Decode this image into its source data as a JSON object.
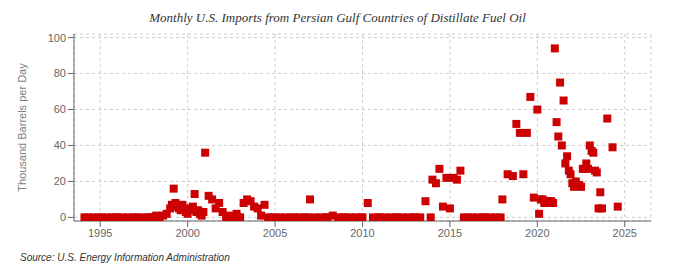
{
  "chart_data": {
    "type": "scatter",
    "title": "Monthly U.S. Imports from Persian Gulf Countries of Distillate Fuel Oil",
    "ylabel": "Thousand Barrels per Day",
    "annotation": "Source: U.S. Energy Information Administration",
    "color": "#cc0000",
    "marker": "square",
    "grid": true,
    "xlim": [
      1993.5,
      2026.5
    ],
    "ylim": [
      -2,
      102
    ],
    "xticks": [
      1995,
      2000,
      2005,
      2010,
      2015,
      2020,
      2025
    ],
    "yticks": [
      0,
      20,
      40,
      60,
      80,
      100
    ],
    "x": [
      1994.1,
      1994.3,
      1994.6,
      1994.9,
      1995.1,
      1995.4,
      1995.7,
      1995.9,
      1996.0,
      1996.3,
      1996.6,
      1996.9,
      1997.1,
      1997.4,
      1997.7,
      1997.9,
      1998.0,
      1998.2,
      1998.4,
      1998.6,
      1998.8,
      1999.0,
      1999.1,
      1999.2,
      1999.3,
      1999.4,
      1999.5,
      1999.6,
      1999.7,
      1999.8,
      1999.9,
      2000.0,
      2000.1,
      2000.2,
      2000.3,
      2000.4,
      2000.5,
      2000.6,
      2000.7,
      2000.8,
      2000.9,
      2001.0,
      2001.2,
      2001.4,
      2001.6,
      2001.8,
      2002.0,
      2002.2,
      2002.4,
      2002.6,
      2002.8,
      2002.9,
      2003.0,
      2003.2,
      2003.4,
      2003.6,
      2003.8,
      2004.0,
      2004.2,
      2004.4,
      2004.6,
      2004.8,
      2005.0,
      2005.3,
      2005.6,
      2005.9,
      2006.1,
      2006.4,
      2006.7,
      2006.9,
      2007.0,
      2007.3,
      2007.6,
      2007.9,
      2008.0,
      2008.3,
      2008.6,
      2008.9,
      2009.0,
      2009.3,
      2009.6,
      2009.9,
      2010.0,
      2010.3,
      2010.6,
      2010.9,
      2011.0,
      2011.3,
      2011.6,
      2011.9,
      2012.0,
      2012.3,
      2012.6,
      2012.9,
      2013.0,
      2013.3,
      2013.6,
      2013.9,
      2014.0,
      2014.2,
      2014.4,
      2014.6,
      2014.8,
      2015.0,
      2015.2,
      2015.4,
      2015.6,
      2015.8,
      2016.0,
      2016.3,
      2016.6,
      2016.9,
      2017.0,
      2017.3,
      2017.6,
      2017.9,
      2018.0,
      2018.3,
      2018.6,
      2018.8,
      2019.0,
      2019.2,
      2019.4,
      2019.6,
      2019.8,
      2020.0,
      2020.1,
      2020.2,
      2020.3,
      2020.4,
      2020.5,
      2020.6,
      2020.7,
      2020.8,
      2020.9,
      2021.0,
      2021.1,
      2021.2,
      2021.3,
      2021.4,
      2021.5,
      2021.6,
      2021.7,
      2021.8,
      2021.9,
      2022.0,
      2022.1,
      2022.2,
      2022.3,
      2022.4,
      2022.5,
      2022.6,
      2022.7,
      2022.8,
      2022.9,
      2023.0,
      2023.1,
      2023.2,
      2023.3,
      2023.4,
      2023.5,
      2023.6,
      2023.7,
      2024.0,
      2024.3,
      2024.6
    ],
    "values": [
      0,
      0,
      0,
      0,
      0,
      0,
      0,
      0,
      0,
      0,
      0,
      0,
      0,
      0,
      0,
      0,
      0,
      1,
      0,
      1,
      2,
      5,
      7,
      16,
      8,
      6,
      5,
      4,
      7,
      5,
      3,
      2,
      4,
      5,
      6,
      13,
      3,
      4,
      2,
      1,
      3,
      36,
      12,
      10,
      5,
      8,
      3,
      0,
      1,
      0,
      2,
      0,
      0,
      8,
      10,
      9,
      6,
      5,
      1,
      7,
      0,
      0,
      0,
      0,
      0,
      0,
      0,
      0,
      0,
      0,
      10,
      0,
      0,
      0,
      0,
      1,
      0,
      0,
      0,
      0,
      0,
      0,
      0,
      8,
      0,
      0,
      0,
      0,
      0,
      0,
      0,
      0,
      0,
      0,
      0,
      0,
      9,
      0,
      21,
      19,
      27,
      6,
      22,
      5,
      22,
      21,
      26,
      0,
      0,
      0,
      0,
      0,
      0,
      0,
      0,
      0,
      10,
      24,
      23,
      52,
      47,
      24,
      47,
      67,
      11,
      60,
      2,
      10,
      10,
      8,
      8,
      9,
      9,
      9,
      8,
      94,
      53,
      45,
      75,
      40,
      65,
      30,
      34,
      26,
      24,
      19,
      17,
      20,
      18,
      18,
      17,
      27,
      27,
      30,
      27,
      40,
      37,
      36,
      26,
      25,
      5,
      14,
      5,
      55,
      39,
      6
    ]
  }
}
